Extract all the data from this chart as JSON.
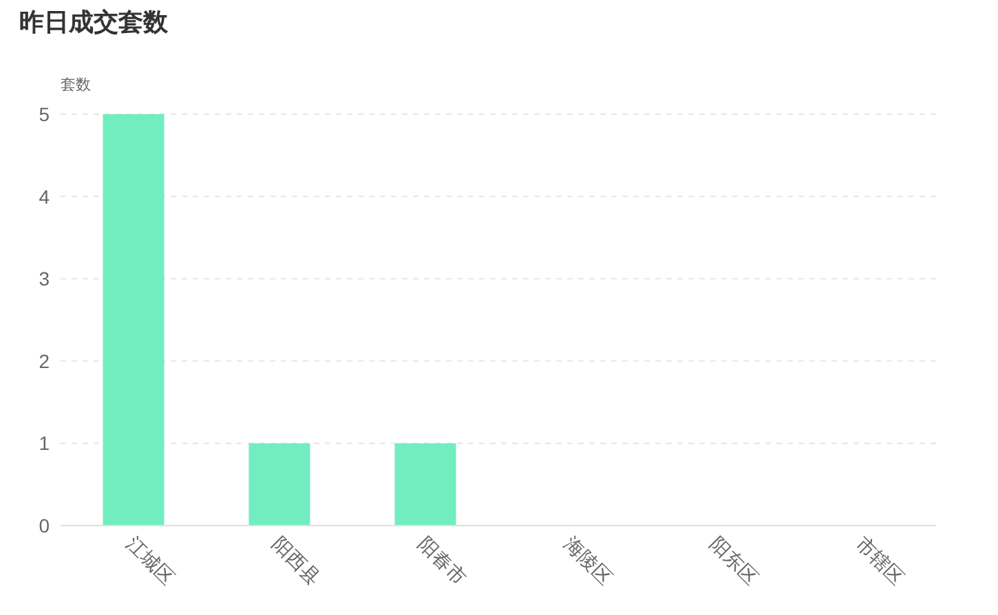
{
  "chart_data": {
    "type": "bar",
    "title": "昨日成交套数",
    "ylabel": "套数",
    "categories": [
      "江城区",
      "阳西县",
      "阳春市",
      "海陵区",
      "阳东区",
      "市辖区"
    ],
    "values": [
      5,
      1,
      1,
      0,
      0,
      0
    ],
    "color": "#72edc0",
    "ylim": [
      0,
      5
    ],
    "yticks": [
      0,
      1,
      2,
      3,
      4,
      5
    ],
    "grid": "y"
  }
}
